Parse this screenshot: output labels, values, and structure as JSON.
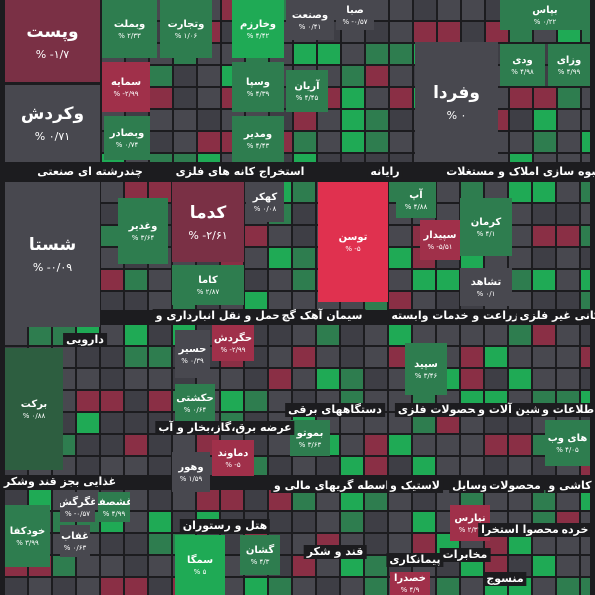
{
  "tiles": [
    {
      "name": "وپست",
      "change": "۱/۷- %"
    },
    {
      "name": "وکردش",
      "change": "۰/۷۱ %"
    },
    {
      "name": "وبملت",
      "change": "۲/۳۳ %"
    },
    {
      "name": "وتجارت",
      "change": "۱/۰۶ %"
    },
    {
      "name": "سمایه",
      "change": "۲/۹۹- %"
    },
    {
      "name": "وبصادر",
      "change": "۰/۷۴ %"
    },
    {
      "name": "وخارزم",
      "change": "۴/۴۲ %"
    },
    {
      "name": "وسپا",
      "change": "۴/۳۹ %"
    },
    {
      "name": "ومدیر",
      "change": "۴/۴۳ %"
    },
    {
      "name": "وصنعت",
      "change": "۰/۴۱ %"
    },
    {
      "name": "آریان",
      "change": "۴/۴۵ %"
    },
    {
      "name": "صبا",
      "change": "۰/۵۷- %"
    },
    {
      "name": "وفردا",
      "change": "۰ %"
    },
    {
      "name": "بپاس",
      "change": "۰/۲۲ %"
    },
    {
      "name": "ودی",
      "change": "۴/۹۸ %"
    },
    {
      "name": "وزای",
      "change": "۴/۹۹ %"
    },
    {
      "name": "شستا",
      "change": "۰/۰۹- %"
    },
    {
      "name": "وغدیر",
      "change": "۳/۶۴ %"
    },
    {
      "name": "کدما",
      "change": "۲/۶۱- %"
    },
    {
      "name": "کهکر",
      "change": "۰/۰۸ %"
    },
    {
      "name": "کاما",
      "change": "۲/۸۷ %"
    },
    {
      "name": "توسن",
      "change": "۵- %"
    },
    {
      "name": "آپ",
      "change": "۴/۸۸ %"
    },
    {
      "name": "سپیدار",
      "change": "۵/۵۱- %"
    },
    {
      "name": "کرمان",
      "change": "۴/۱ %"
    },
    {
      "name": "تشاهد",
      "change": "۰/۱ %"
    },
    {
      "name": "برکت",
      "change": "۰/۸۸ %"
    },
    {
      "name": "حسیر",
      "change": "۰/۳۹ %"
    },
    {
      "name": "حگردش",
      "change": "۲/۹۹- %"
    },
    {
      "name": "حکشتی",
      "change": "۰/۶۴ %"
    },
    {
      "name": "وهور",
      "change": "۱/۵۹ %"
    },
    {
      "name": "دماوند",
      "change": "۵- %"
    },
    {
      "name": "سپید",
      "change": "۳/۴۶ %"
    },
    {
      "name": "بموتو",
      "change": "۳/۶۳ %"
    },
    {
      "name": "های وب",
      "change": "۴/۰۵ %"
    },
    {
      "name": "غگرگش",
      "change": "۰/۵۷- %"
    },
    {
      "name": "غشصفا",
      "change": "۴/۹۹ %"
    },
    {
      "name": "خودکفا",
      "change": "۳/۹۹ %"
    },
    {
      "name": "غفاب",
      "change": "۰/۶۳ %"
    },
    {
      "name": "سمگا",
      "change": "۵ %"
    },
    {
      "name": "گشان",
      "change": "۴/۳ %"
    },
    {
      "name": "نپارس",
      "change": "۲/۳۳ %"
    },
    {
      "name": "خصدرا",
      "change": "۴/۹ %"
    }
  ],
  "sector_labels": [
    "چندرشته ای صنعتی",
    "استخراج کانه های فلزی",
    "رایانه",
    "انبوه سازی املاک و مستغلات",
    "حمل و نقل انبارداری و",
    "سیمان آهک گچ",
    "زراعت و خدمات وابسته",
    "کانی غیر فلزی",
    "دارویی",
    "عرضه برق،گاز،بخار و آب",
    "دستگاههای برقی",
    "محصولات فلزی",
    "ماشین آلات و",
    "اطلاعات و",
    "غذایی بجز قند وشکر",
    "هتل و رستوران",
    "واسطه گریهای مالی و",
    "لاستیک و",
    "وسایل",
    "محصولات",
    "کاشی و",
    "قند و شکر",
    "پیمانکاری",
    "مخابرات",
    "خرده",
    "محصوا استخرا",
    "منسوج"
  ]
}
